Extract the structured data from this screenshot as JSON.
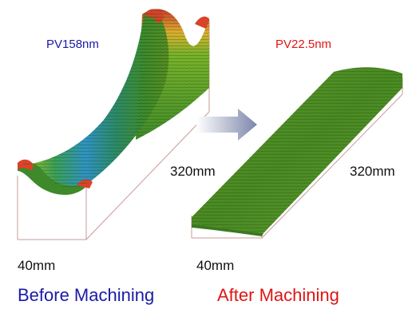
{
  "before": {
    "pv_label": "PV158nm",
    "length_label": "320mm",
    "width_label": "40mm",
    "caption": "Before Machining"
  },
  "after": {
    "pv_label": "PV22.5nm",
    "length_label": "320mm",
    "width_label": "40mm",
    "caption": "After Machining"
  },
  "colors": {
    "before_accent": "#1a1aa8",
    "after_accent": "#e01515",
    "arrow": "#8c94b5",
    "surface_green": "#4a8c22",
    "box_line": "#c89a9a"
  },
  "icons": {
    "transition": "right-arrow-icon"
  }
}
